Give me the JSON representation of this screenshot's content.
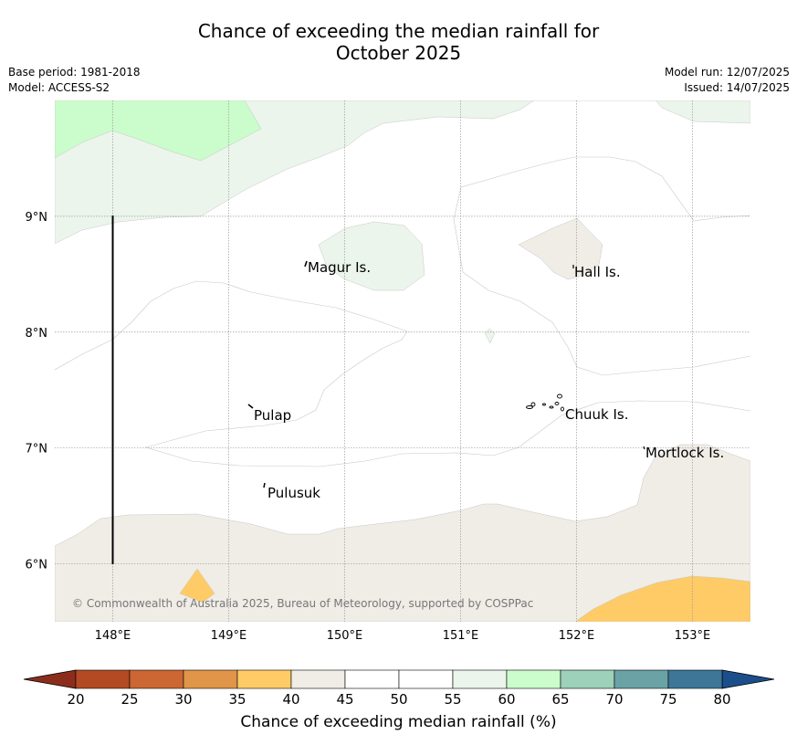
{
  "title_line1": "Chance of exceeding the median rainfall for",
  "title_line2": "October 2025",
  "meta_left": [
    "Base period: 1981-2018",
    "Model: ACCESS-S2"
  ],
  "meta_right": [
    "Model run: 12/07/2025",
    "Issued: 14/07/2025"
  ],
  "copyright": "© Commonwealth of Australia 2025, Bureau of Meteorology, supported by COSPPac",
  "map": {
    "lon_range": [
      147.5,
      153.5
    ],
    "lat_range": [
      5.5,
      10.0
    ],
    "lon_ticks": [
      {
        "value": 148,
        "label": "148°E"
      },
      {
        "value": 149,
        "label": "149°E"
      },
      {
        "value": 150,
        "label": "150°E"
      },
      {
        "value": 151,
        "label": "151°E"
      },
      {
        "value": 152,
        "label": "152°E"
      },
      {
        "value": 153,
        "label": "153°E"
      }
    ],
    "lat_ticks": [
      {
        "value": 9,
        "label": "9°N"
      },
      {
        "value": 8,
        "label": "8°N"
      },
      {
        "value": 7,
        "label": "7°N"
      },
      {
        "value": 6,
        "label": "6°N"
      }
    ],
    "grid": true,
    "places": [
      {
        "name": "Magur Is."
      },
      {
        "name": "Hall Is."
      },
      {
        "name": "Pulap"
      },
      {
        "name": "Chuuk Is."
      },
      {
        "name": "Mortlock Is."
      },
      {
        "name": "Pulusuk"
      }
    ]
  },
  "colorbar": {
    "label": "Chance of exceeding median rainfall (%)",
    "ticks": [
      "20",
      "25",
      "30",
      "35",
      "40",
      "45",
      "50",
      "55",
      "60",
      "65",
      "70",
      "75",
      "80"
    ],
    "low_extend_color": "#8c2d1b",
    "high_extend_color": "#1b4f8c",
    "colors": [
      "#b34a24",
      "#cc6633",
      "#e09548",
      "#fecb66",
      "#f0ece6",
      "#ffffff",
      "#ffffff",
      "#ebf5eb",
      "#cbfccb",
      "#9dd1b9",
      "#6aa3a6",
      "#3e7697"
    ]
  },
  "legend_colors": {
    "35-40": "#fecb66",
    "40-45": "#f0ece6",
    "55-60": "#ebf5eb",
    "60-65": "#cbfccb"
  }
}
